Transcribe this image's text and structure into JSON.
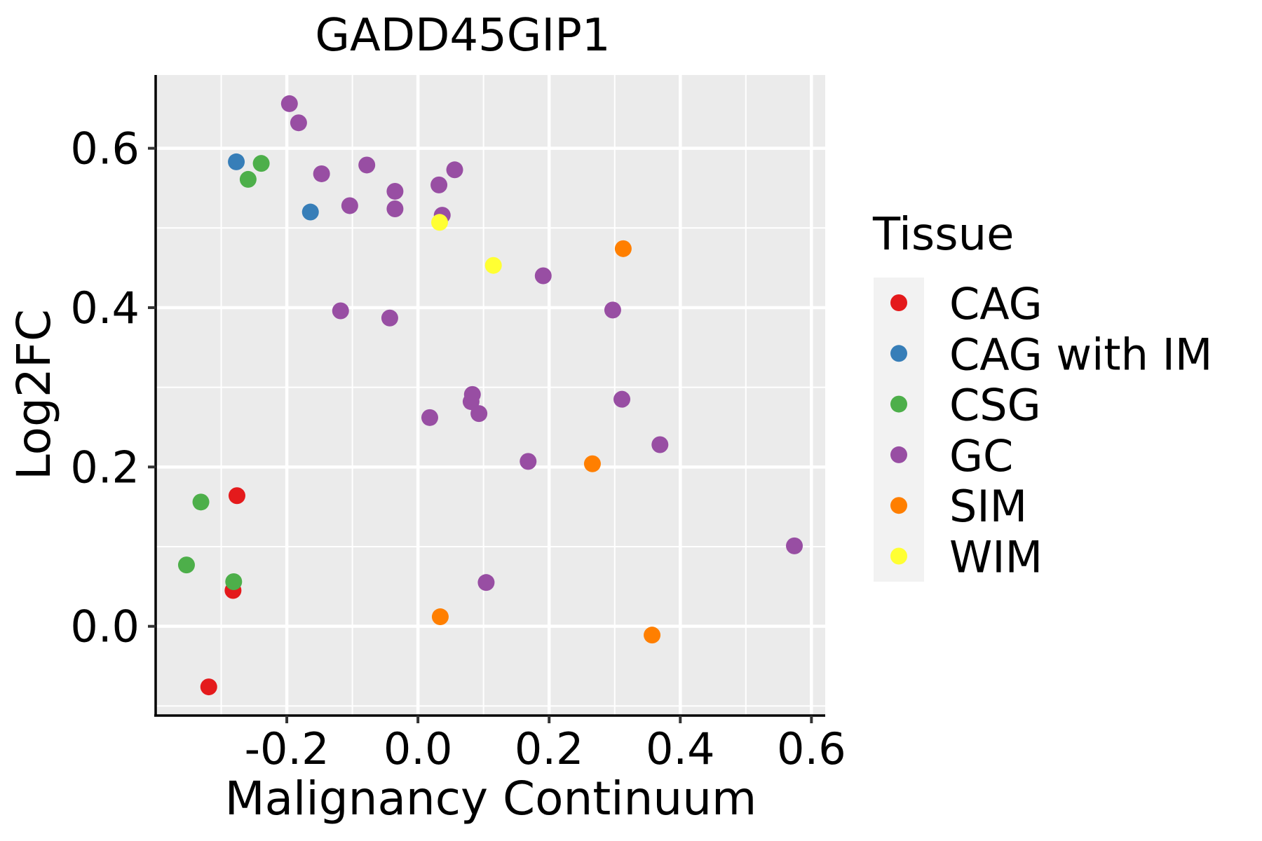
{
  "chart_data": {
    "type": "scatter",
    "title": "GADD45GIP1",
    "xlabel": "Malignancy Continuum",
    "ylabel": "Log2FC",
    "xlim": [
      -0.4,
      0.621
    ],
    "ylim": [
      -0.112,
      0.692
    ],
    "x_ticks": [
      -0.2,
      0.0,
      0.2,
      0.4,
      0.6
    ],
    "x_tick_labels": [
      "-0.2",
      "0.0",
      "0.2",
      "0.4",
      "0.6"
    ],
    "x_minor_ticks": [
      -0.3,
      -0.1,
      0.1,
      0.3,
      0.5
    ],
    "y_ticks": [
      0.0,
      0.2,
      0.4,
      0.6
    ],
    "y_tick_labels": [
      "0.0",
      "0.2",
      "0.4",
      "0.6"
    ],
    "y_minor_ticks": [
      -0.1,
      0.1,
      0.3,
      0.5
    ],
    "grid": true,
    "legend": {
      "title": "Tissue",
      "position": "right"
    },
    "series": [
      {
        "name": "CAG",
        "color": "#E41A1C",
        "points": [
          [
            -0.276,
            0.164
          ],
          [
            -0.282,
            0.045
          ],
          [
            -0.319,
            -0.076
          ]
        ]
      },
      {
        "name": "CAG with IM",
        "color": "#377EB8",
        "points": [
          [
            -0.277,
            0.583
          ],
          [
            -0.164,
            0.52
          ]
        ]
      },
      {
        "name": "CSG",
        "color": "#4DAF4A",
        "points": [
          [
            -0.239,
            0.581
          ],
          [
            -0.259,
            0.561
          ],
          [
            -0.331,
            0.156
          ],
          [
            -0.353,
            0.077
          ],
          [
            -0.281,
            0.056
          ]
        ]
      },
      {
        "name": "GC",
        "color": "#984EA3",
        "points": [
          [
            -0.196,
            0.656
          ],
          [
            -0.182,
            0.632
          ],
          [
            -0.147,
            0.568
          ],
          [
            -0.078,
            0.579
          ],
          [
            -0.104,
            0.528
          ],
          [
            -0.035,
            0.546
          ],
          [
            -0.035,
            0.524
          ],
          [
            0.032,
            0.554
          ],
          [
            0.056,
            0.573
          ],
          [
            0.037,
            0.516
          ],
          [
            0.191,
            0.44
          ],
          [
            0.297,
            0.397
          ],
          [
            -0.118,
            0.396
          ],
          [
            -0.043,
            0.387
          ],
          [
            0.018,
            0.262
          ],
          [
            0.083,
            0.291
          ],
          [
            0.081,
            0.282
          ],
          [
            0.093,
            0.267
          ],
          [
            0.168,
            0.207
          ],
          [
            0.311,
            0.285
          ],
          [
            0.369,
            0.228
          ],
          [
            0.574,
            0.101
          ],
          [
            0.104,
            0.055
          ]
        ]
      },
      {
        "name": "SIM",
        "color": "#FF7F00",
        "points": [
          [
            0.313,
            0.474
          ],
          [
            0.266,
            0.204
          ],
          [
            0.034,
            0.012
          ],
          [
            0.357,
            -0.011
          ]
        ]
      },
      {
        "name": "WIM",
        "color": "#FFFF33",
        "points": [
          [
            0.033,
            0.507
          ],
          [
            0.115,
            0.453
          ]
        ]
      }
    ],
    "colors": {
      "panel_background": "#EBEBEB",
      "grid": "#FFFFFF",
      "legend_key_background": "#F2F2F2",
      "axis_line": "#000000",
      "tick": "#333333"
    }
  }
}
